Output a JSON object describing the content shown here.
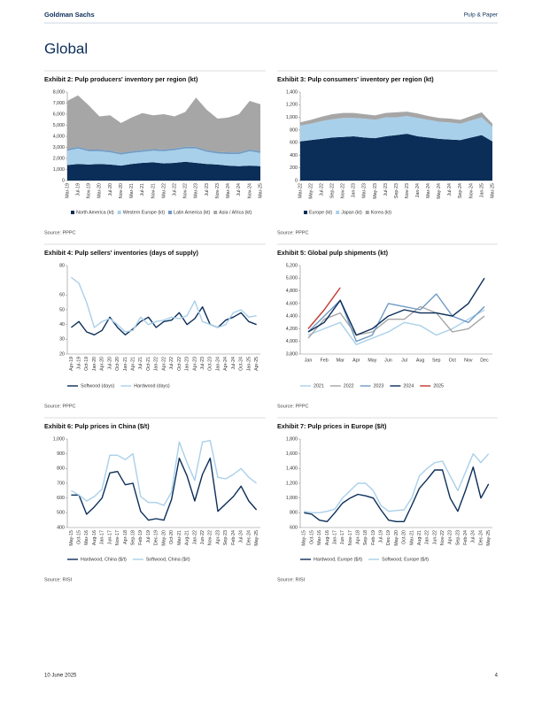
{
  "header": {
    "brand": "Goldman Sachs",
    "section": "Pulp & Paper"
  },
  "title": "Global",
  "footer": {
    "date": "10 June 2025",
    "page": "4"
  },
  "chart_data": [
    {
      "type": "area",
      "title": "Exhibit 2: Pulp producers' inventory per region (kt)",
      "source": "Source: PPPC",
      "categories": [
        "Mar-19",
        "Jul-19",
        "Nov-19",
        "Mar-20",
        "Jul-20",
        "Nov-20",
        "Mar-21",
        "Jul-21",
        "Nov-21",
        "Mar-22",
        "Jul-22",
        "Nov-22",
        "Mar-23",
        "Jul-23",
        "Nov-23",
        "Mar-24",
        "Jul-24",
        "Nov-24",
        "Mar-25"
      ],
      "series": [
        {
          "name": "North America (kt)",
          "color": "#0b2e59",
          "values": [
            1400,
            1500,
            1450,
            1500,
            1450,
            1350,
            1500,
            1600,
            1650,
            1550,
            1600,
            1700,
            1600,
            1500,
            1450,
            1350,
            1300,
            1350,
            1300
          ]
        },
        {
          "name": "Western Europe (kt)",
          "color": "#a9d0ea",
          "values": [
            1300,
            1400,
            1200,
            1150,
            1100,
            1000,
            1000,
            1000,
            1050,
            1100,
            1150,
            1200,
            1300,
            1100,
            1000,
            1050,
            1100,
            1300,
            1200
          ]
        },
        {
          "name": "Latin America (kt)",
          "color": "#6f9bc4",
          "values": [
            150,
            150,
            150,
            150,
            150,
            150,
            150,
            150,
            150,
            150,
            150,
            150,
            150,
            150,
            150,
            150,
            150,
            150,
            150
          ]
        },
        {
          "name": "Asia / Africa (kt)",
          "color": "#a6a6a6",
          "values": [
            4350,
            4650,
            4000,
            3000,
            3200,
            2700,
            3050,
            3350,
            3050,
            3200,
            2900,
            3150,
            4450,
            3650,
            3000,
            3150,
            3450,
            4400,
            4250
          ]
        }
      ],
      "ylim": [
        0,
        8000
      ],
      "yticks": [
        0,
        {
          "value": 1000,
          "label": "1,000"
        },
        {
          "value": 2000,
          "label": "2,000"
        },
        {
          "value": 3000,
          "label": "3,000"
        },
        {
          "value": 4000,
          "label": "4,000"
        },
        {
          "value": 5000,
          "label": "5,000"
        },
        {
          "value": 6000,
          "label": "6,000"
        },
        {
          "value": 7000,
          "label": "7,000"
        },
        {
          "value": 8000,
          "label": "8,000"
        }
      ]
    },
    {
      "type": "area",
      "title": "Exhibit 3: Pulp consumers' inventory per region (kt)",
      "source": "Source: PPPC",
      "categories": [
        "Mar-22",
        "May-22",
        "Jul-22",
        "Sep-22",
        "Nov-22",
        "Jan-23",
        "Mar-23",
        "May-23",
        "Jul-23",
        "Sep-23",
        "Nov-23",
        "Jan-24",
        "Mar-24",
        "May-24",
        "Jul-24",
        "Sep-24",
        "Nov-24",
        "Jan-25",
        "Mar-25"
      ],
      "series": [
        {
          "name": "Europe (kt)",
          "color": "#0b2e59",
          "values": [
            620,
            640,
            660,
            680,
            690,
            700,
            680,
            670,
            700,
            720,
            740,
            700,
            680,
            660,
            650,
            640,
            680,
            720,
            620
          ]
        },
        {
          "name": "Japan (kt)",
          "color": "#a9d0ea",
          "values": [
            250,
            260,
            280,
            290,
            300,
            290,
            300,
            290,
            300,
            280,
            280,
            290,
            280,
            270,
            270,
            260,
            270,
            280,
            230
          ]
        },
        {
          "name": "Korea (kt)",
          "color": "#a6a6a6",
          "values": [
            50,
            60,
            70,
            80,
            80,
            80,
            70,
            70,
            70,
            80,
            70,
            70,
            60,
            60,
            60,
            60,
            70,
            80,
            50
          ]
        }
      ],
      "ylim": [
        0,
        1400
      ],
      "yticks": [
        0,
        200,
        400,
        600,
        800,
        {
          "value": 1000,
          "label": "1,000"
        },
        {
          "value": 1200,
          "label": "1,200"
        },
        {
          "value": 1400,
          "label": "1,400"
        }
      ]
    },
    {
      "type": "line",
      "title": "Exhibit 4: Pulp sellers' inventories (days of supply)",
      "source": "Source: PPPC",
      "categories": [
        "Apr-19",
        "Jul-19",
        "Oct-19",
        "Jan-20",
        "Apr-20",
        "Jul-20",
        "Oct-20",
        "Jan-21",
        "Apr-21",
        "Jul-21",
        "Oct-21",
        "Jan-22",
        "Apr-22",
        "Jul-22",
        "Oct-22",
        "Jan-23",
        "Apr-23",
        "Jul-23",
        "Oct-23",
        "Jan-24",
        "Apr-24",
        "Jul-24",
        "Oct-24",
        "Jan-25",
        "Apr-25"
      ],
      "series": [
        {
          "name": "Softwood (days)",
          "color": "#0b2e59",
          "values": [
            38,
            42,
            35,
            33,
            36,
            45,
            38,
            33,
            37,
            42,
            45,
            38,
            42,
            43,
            48,
            40,
            44,
            52,
            40,
            38,
            43,
            45,
            48,
            42,
            40
          ]
        },
        {
          "name": "Hardwood (days)",
          "color": "#a9d0ea",
          "values": [
            72,
            68,
            55,
            38,
            42,
            44,
            40,
            35,
            36,
            45,
            40,
            42,
            43,
            45,
            44,
            46,
            56,
            42,
            40,
            38,
            40,
            48,
            50,
            45,
            46
          ]
        }
      ],
      "ylim": [
        20,
        80
      ],
      "yticks": [
        20,
        30,
        40,
        50,
        60,
        80
      ]
    },
    {
      "type": "line",
      "title": "Exhibit 5: Global pulp shipments (kt)",
      "source": "Source: PPPC",
      "horizontal_labels": true,
      "categories": [
        "Jan",
        "Feb",
        "Mar",
        "Apr",
        "May",
        "Jun",
        "Jul",
        "Aug",
        "Sep",
        "Oct",
        "Nov",
        "Dec"
      ],
      "series": [
        {
          "name": "2021",
          "color": "#a9d0ea",
          "values": [
            4100,
            4200,
            4300,
            3950,
            4050,
            4150,
            4300,
            4250,
            4100,
            4200,
            4350,
            4500
          ]
        },
        {
          "name": "2022",
          "color": "#a6a6a6",
          "values": [
            4050,
            4350,
            4450,
            4100,
            4150,
            4350,
            4350,
            4550,
            4450,
            4150,
            4200,
            4400
          ]
        },
        {
          "name": "2023",
          "color": "#6f9bc4",
          "values": [
            4150,
            4400,
            4650,
            4000,
            4100,
            4600,
            4550,
            4500,
            4750,
            4400,
            4300,
            4550
          ]
        },
        {
          "name": "2024",
          "color": "#0b2e59",
          "values": [
            4150,
            4300,
            4650,
            4100,
            4200,
            4400,
            4500,
            4450,
            4450,
            4400,
            4600,
            5000
          ]
        },
        {
          "name": "2025",
          "color": "#c0392b",
          "values": [
            4200,
            4500,
            4850,
            null,
            null,
            null,
            null,
            null,
            null,
            null,
            null,
            null
          ]
        }
      ],
      "ylim": [
        3800,
        5200
      ],
      "yticks": [
        {
          "value": 3800,
          "label": "3,800"
        },
        {
          "value": 4000,
          "label": "4,000"
        },
        {
          "value": 4200,
          "label": "4,200"
        },
        {
          "value": 4400,
          "label": "4,400"
        },
        {
          "value": 4600,
          "label": "4,600"
        },
        {
          "value": 4800,
          "label": "4,800"
        },
        {
          "value": 5000,
          "label": "5,000"
        },
        {
          "value": 5200,
          "label": "5,200"
        }
      ]
    },
    {
      "type": "line",
      "title": "Exhibit 6: Pulp prices in China ($/t)",
      "source": "Source: RISI",
      "categories": [
        "May-15",
        "Oct-15",
        "Mar-16",
        "Aug-16",
        "Jan-17",
        "Jun-17",
        "Nov-17",
        "Apr-18",
        "Sep-18",
        "Feb-19",
        "Jul-19",
        "Dec-19",
        "May-20",
        "Oct-20",
        "Mar-21",
        "Aug-21",
        "Jan-22",
        "Jun-22",
        "Nov-22",
        "Apr-23",
        "Sep-23",
        "Feb-24",
        "Jul-24",
        "Dec-24",
        "May-25"
      ],
      "series": [
        {
          "name": "Hardwood, China ($/t)",
          "color": "#0b2e59",
          "values": [
            620,
            620,
            490,
            540,
            600,
            770,
            780,
            690,
            700,
            510,
            450,
            460,
            450,
            590,
            870,
            750,
            580,
            760,
            870,
            510,
            560,
            610,
            680,
            580,
            520
          ]
        },
        {
          "name": "Softwood, China ($/t)",
          "color": "#a9d0ea",
          "values": [
            650,
            620,
            580,
            610,
            660,
            890,
            890,
            860,
            900,
            610,
            570,
            570,
            550,
            640,
            980,
            840,
            720,
            980,
            990,
            740,
            730,
            760,
            800,
            740,
            700
          ]
        }
      ],
      "ylim": [
        400,
        1000
      ],
      "yticks": [
        400,
        500,
        600,
        700,
        800,
        900,
        {
          "value": 1000,
          "label": "1,000"
        }
      ]
    },
    {
      "type": "line",
      "title": "Exhibit 7: Pulp prices in Europe ($/t)",
      "source": "Source: RISI",
      "categories": [
        "May-15",
        "Oct-15",
        "Mar-16",
        "Aug-16",
        "Jan-17",
        "Jun-17",
        "Nov-17",
        "Apr-18",
        "Sep-18",
        "Feb-19",
        "Jul-19",
        "Dec-19",
        "May-20",
        "Oct-20",
        "Mar-21",
        "Aug-21",
        "Jan-22",
        "Jun-22",
        "Nov-22",
        "Apr-23",
        "Sep-23",
        "Feb-24",
        "Jul-24",
        "Dec-24",
        "May-25"
      ],
      "series": [
        {
          "name": "Hardwood, Europe ($/t)",
          "color": "#0b2e59",
          "values": [
            800,
            780,
            700,
            680,
            800,
            930,
            1000,
            1050,
            1030,
            1000,
            840,
            700,
            680,
            680,
            900,
            1130,
            1250,
            1380,
            1380,
            1000,
            820,
            1100,
            1420,
            1000,
            1190
          ]
        },
        {
          "name": "Softwood, Europe ($/t)",
          "color": "#a9d0ea",
          "values": [
            820,
            800,
            800,
            820,
            850,
            1000,
            1100,
            1200,
            1200,
            1100,
            900,
            820,
            830,
            840,
            1000,
            1300,
            1400,
            1480,
            1500,
            1300,
            1100,
            1350,
            1600,
            1480,
            1600
          ]
        }
      ],
      "ylim": [
        600,
        1800
      ],
      "yticks": [
        600,
        800,
        {
          "value": 1000,
          "label": "1,000"
        },
        {
          "value": 1200,
          "label": "1,200"
        },
        {
          "value": 1400,
          "label": "1,400"
        },
        {
          "value": 1600,
          "label": "1,600"
        },
        {
          "value": 1800,
          "label": "1,800"
        }
      ]
    }
  ]
}
